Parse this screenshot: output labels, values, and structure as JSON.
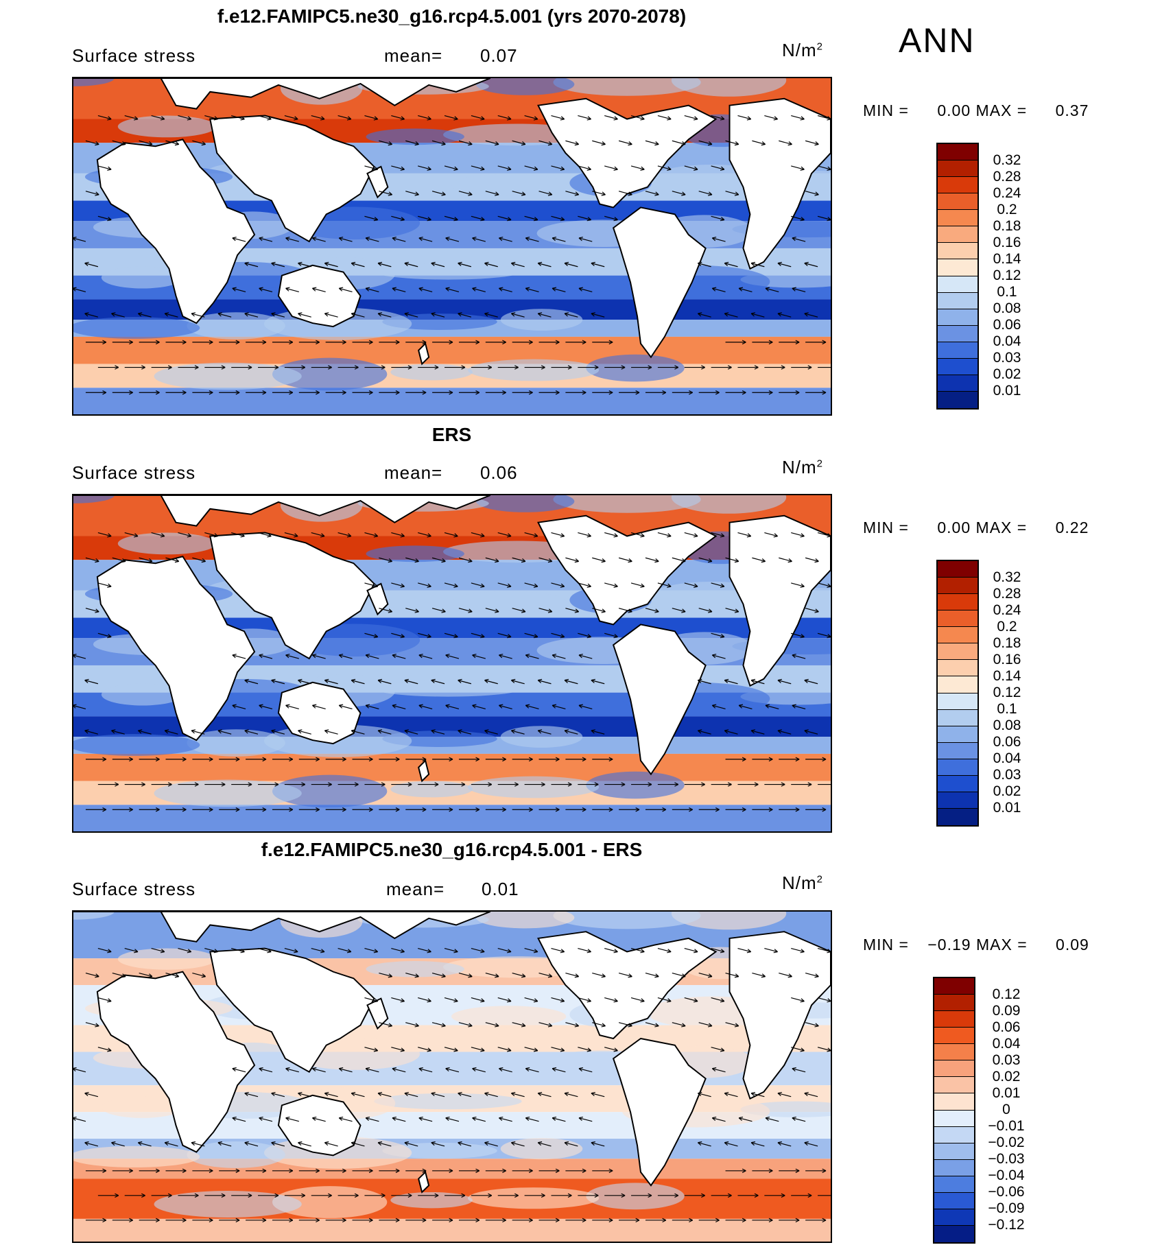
{
  "season": "ANN",
  "units_label": "N/m",
  "units_sup": "2",
  "panels": [
    {
      "title": "f.e12.FAMIPC5.ne30_g16.rcp4.5.001 (yrs 2070-2078)",
      "variable": "Surface stress",
      "mean_label": "mean=",
      "mean_value": "0.07",
      "min_label": "MIN =",
      "min_value": "0.00",
      "max_label": "MAX =",
      "max_value": "0.37",
      "levels": [
        "0.32",
        "0.28",
        "0.24",
        "0.2",
        "0.18",
        "0.16",
        "0.14",
        "0.12",
        "0.1",
        "0.08",
        "0.06",
        "0.04",
        "0.03",
        "0.02",
        "0.01"
      ]
    },
    {
      "title": "ERS",
      "variable": "Surface stress",
      "mean_label": "mean=",
      "mean_value": "0.06",
      "min_label": "MIN =",
      "min_value": "0.00",
      "max_label": "MAX =",
      "max_value": "0.22",
      "levels": [
        "0.32",
        "0.28",
        "0.24",
        "0.2",
        "0.18",
        "0.16",
        "0.14",
        "0.12",
        "0.1",
        "0.08",
        "0.06",
        "0.04",
        "0.03",
        "0.02",
        "0.01"
      ]
    },
    {
      "title": "f.e12.FAMIPC5.ne30_g16.rcp4.5.001 - ERS",
      "variable": "Surface stress",
      "mean_label": "mean=",
      "mean_value": "0.01",
      "min_label": "MIN =",
      "min_value": "−0.19",
      "max_label": "MAX =",
      "max_value": "0.09",
      "levels": [
        "0.12",
        "0.09",
        "0.06",
        "0.04",
        "0.03",
        "0.02",
        "0.01",
        "0",
        "−0.01",
        "−0.02",
        "−0.03",
        "−0.04",
        "−0.06",
        "−0.09",
        "−0.12"
      ]
    }
  ],
  "colors": {
    "abs_scale": [
      "#7f0000",
      "#b22000",
      "#d93a0a",
      "#ea5f2a",
      "#f5884f",
      "#f9aa7e",
      "#fccfae",
      "#fde9d4",
      "#d6e7f7",
      "#b2cdef",
      "#8fb2ea",
      "#6b92e3",
      "#3f6fdc",
      "#1e4fcf",
      "#0d33b0",
      "#051f84"
    ],
    "diff_scale": [
      "#7f0000",
      "#b22000",
      "#d93a0a",
      "#ef5a20",
      "#f4804a",
      "#f7a27c",
      "#fac3a6",
      "#fde3d0",
      "#e3eefb",
      "#c4d8f4",
      "#9fbded",
      "#7aa0e6",
      "#4d7ddf",
      "#2a5ad4",
      "#0f38b6",
      "#051d86"
    ],
    "land": "#ffffff",
    "coast": "#000000"
  }
}
